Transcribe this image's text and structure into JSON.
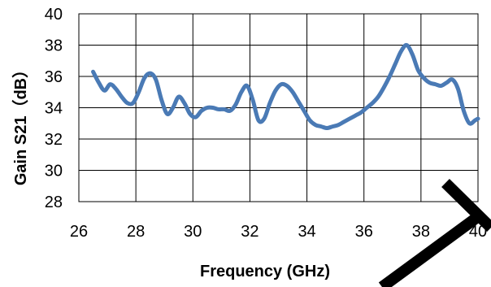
{
  "chart_data": {
    "type": "line",
    "title": "",
    "xlabel": "Frequency (GHz)",
    "ylabel": "Gain S21（dB）",
    "xlim": [
      26,
      40
    ],
    "ylim": [
      28,
      40
    ],
    "xticks": [
      26,
      28,
      30,
      32,
      34,
      36,
      38,
      40
    ],
    "yticks": [
      28,
      30,
      32,
      34,
      36,
      38,
      40
    ],
    "grid": true,
    "legend": "none",
    "series": [
      {
        "color": "#4a7ab5",
        "x": [
          26.5,
          26.7,
          26.9,
          27.1,
          27.3,
          27.5,
          27.7,
          27.9,
          28.1,
          28.3,
          28.5,
          28.7,
          28.9,
          29.1,
          29.3,
          29.5,
          29.7,
          29.9,
          30.1,
          30.3,
          30.5,
          30.7,
          30.9,
          31.1,
          31.3,
          31.5,
          31.7,
          31.9,
          32.1,
          32.3,
          32.5,
          32.7,
          32.9,
          33.1,
          33.3,
          33.5,
          33.7,
          33.9,
          34.1,
          34.3,
          34.5,
          34.7,
          34.9,
          35.1,
          35.3,
          35.5,
          35.7,
          35.9,
          36.1,
          36.3,
          36.5,
          36.7,
          36.9,
          37.1,
          37.3,
          37.5,
          37.7,
          37.9,
          38.1,
          38.3,
          38.5,
          38.7,
          38.9,
          39.1,
          39.3,
          39.5,
          39.7,
          39.9,
          40.0
        ],
        "y": [
          36.3,
          35.6,
          35.1,
          35.5,
          35.2,
          34.7,
          34.3,
          34.3,
          35.0,
          35.9,
          36.2,
          35.8,
          34.5,
          33.6,
          34.0,
          34.7,
          34.3,
          33.6,
          33.4,
          33.8,
          34.0,
          34.0,
          33.9,
          33.9,
          33.8,
          34.2,
          35.0,
          35.4,
          34.5,
          33.2,
          33.3,
          34.3,
          35.1,
          35.5,
          35.4,
          35.0,
          34.4,
          33.8,
          33.2,
          32.9,
          32.8,
          32.7,
          32.8,
          32.9,
          33.1,
          33.3,
          33.5,
          33.7,
          34.0,
          34.3,
          34.7,
          35.3,
          36.0,
          36.8,
          37.6,
          38.0,
          37.4,
          36.4,
          35.9,
          35.6,
          35.5,
          35.4,
          35.6,
          35.8,
          35.2,
          33.8,
          33.0,
          33.2,
          33.3
        ]
      }
    ]
  }
}
